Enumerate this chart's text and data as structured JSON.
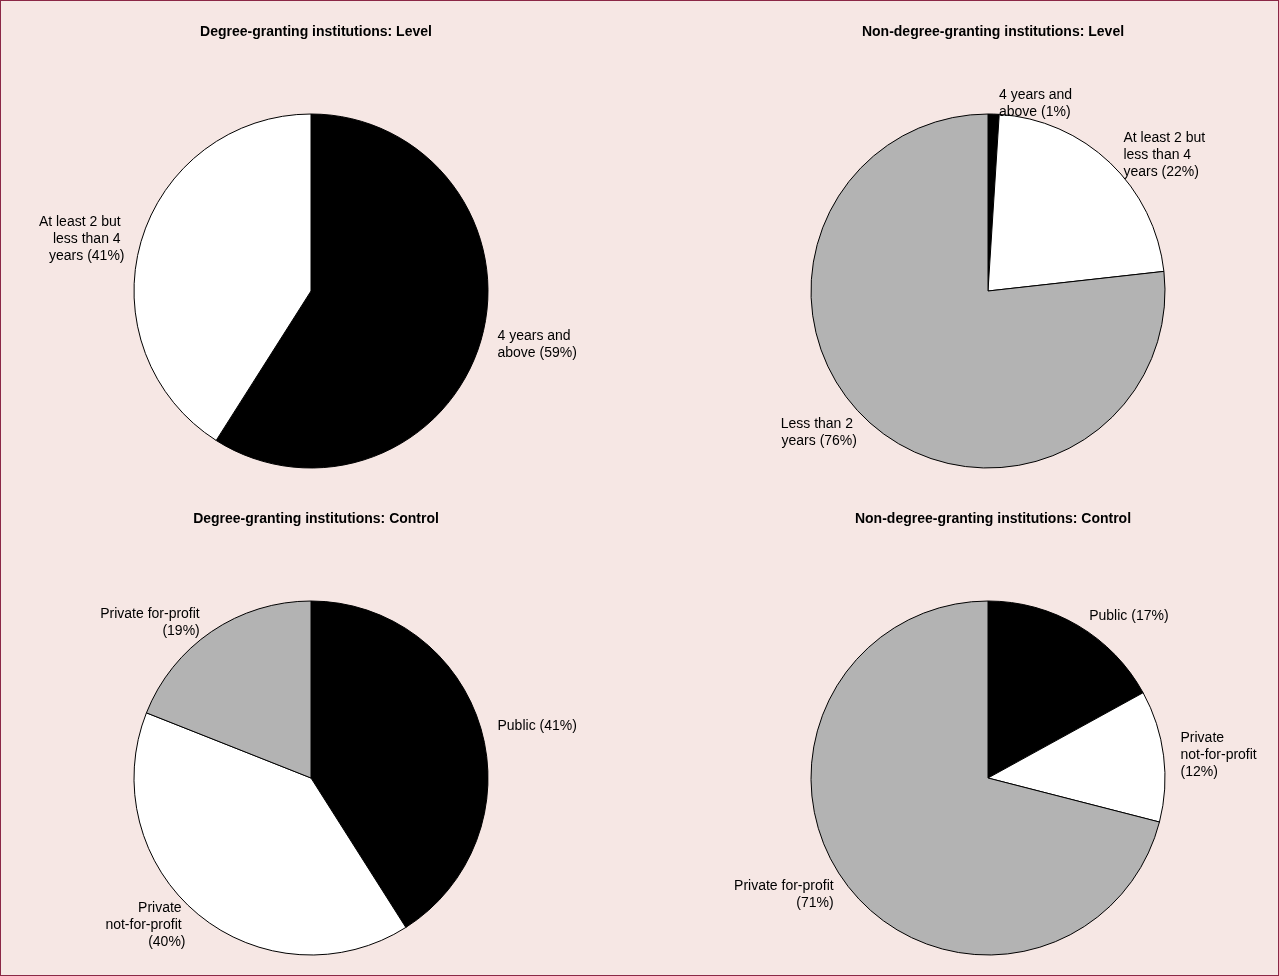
{
  "chart_data": [
    {
      "type": "pie",
      "title": "Degree-granting institutions: Level",
      "categories": [
        "4 years and above",
        "At least 2 but less than 4 years"
      ],
      "values": [
        59,
        41
      ],
      "colors": [
        "#000000",
        "#ffffff"
      ],
      "value_labels": [
        "(59%)",
        "(41%)"
      ]
    },
    {
      "type": "pie",
      "title": "Non-degree-granting institutions: Level",
      "categories": [
        "4 years and above",
        "At least 2 but less than 4 years",
        "Less than 2 years"
      ],
      "values": [
        1,
        22,
        76
      ],
      "colors": [
        "#000000",
        "#ffffff",
        "#b3b3b3"
      ],
      "value_labels": [
        "(1%)",
        "(22%)",
        "(76%)"
      ]
    },
    {
      "type": "pie",
      "title": "Degree-granting institutions: Control",
      "categories": [
        "Public",
        "Private not-for-profit",
        "Private for-profit"
      ],
      "values": [
        41,
        40,
        19
      ],
      "colors": [
        "#000000",
        "#ffffff",
        "#b3b3b3"
      ],
      "value_labels": [
        "(41%)",
        "(40%)",
        "(19%)"
      ]
    },
    {
      "type": "pie",
      "title": "Non-degree-granting institutions: Control",
      "categories": [
        "Public",
        "Private not-for-profit",
        "Private for-profit"
      ],
      "values": [
        17,
        12,
        71
      ],
      "colors": [
        "#000000",
        "#ffffff",
        "#b3b3b3"
      ],
      "value_labels": [
        "(17%)",
        "(12%)",
        "(71%)"
      ]
    }
  ]
}
